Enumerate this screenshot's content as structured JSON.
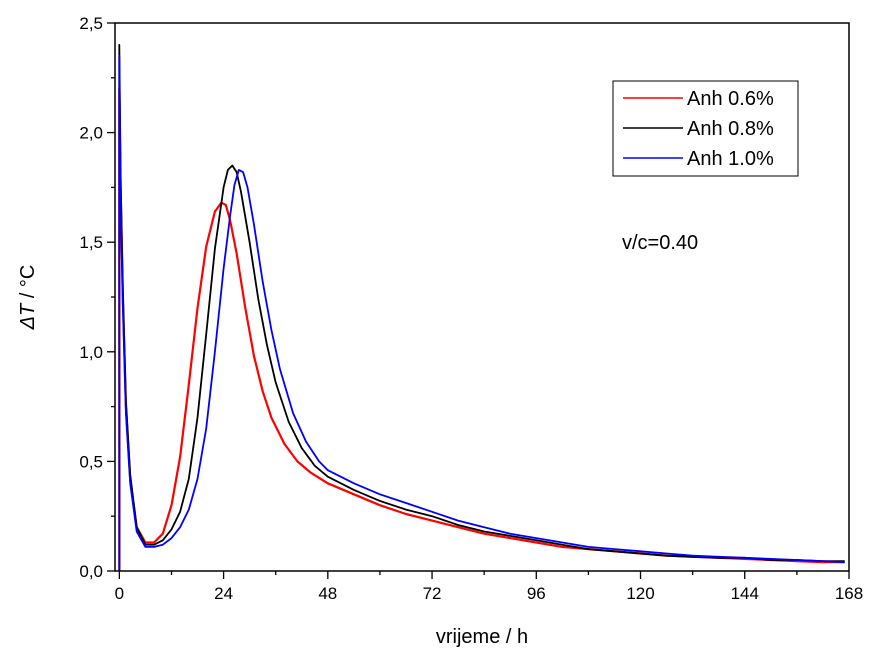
{
  "chart_data": {
    "type": "line",
    "xlabel": "vrijeme / h",
    "ylabel_symbol": "ΔT",
    "ylabel_unit": " / °C",
    "xlim": [
      -1,
      168
    ],
    "ylim": [
      0,
      2.5
    ],
    "xticks": [
      0,
      24,
      48,
      72,
      96,
      120,
      144,
      168
    ],
    "xtick_labels": [
      "0",
      "24",
      "48",
      "72",
      "96",
      "120",
      "144",
      "168"
    ],
    "yticks": [
      0,
      0.5,
      1.0,
      1.5,
      2.0,
      2.5
    ],
    "ytick_labels": [
      "0,0",
      "0,5",
      "1,0",
      "1,5",
      "2,0",
      "2,5"
    ],
    "annotation": "v/c=0.40",
    "legend_position": "top-right",
    "series": [
      {
        "name": "Anh 0.6%",
        "color": "#ff0000",
        "x": [
          0,
          0.3,
          0.8,
          1.5,
          2.5,
          4,
          6,
          8,
          10,
          12,
          14,
          16,
          18,
          20,
          22,
          23.5,
          24.5,
          25.5,
          27,
          29,
          31,
          33,
          35,
          38,
          41,
          44,
          48,
          54,
          60,
          66,
          72,
          78,
          84,
          90,
          96,
          102,
          108,
          114,
          120,
          126,
          132,
          138,
          144,
          150,
          156,
          162,
          167
        ],
        "y": [
          2.2,
          1.75,
          1.25,
          0.75,
          0.42,
          0.2,
          0.13,
          0.13,
          0.17,
          0.3,
          0.52,
          0.85,
          1.2,
          1.48,
          1.64,
          1.68,
          1.67,
          1.6,
          1.45,
          1.2,
          0.98,
          0.82,
          0.7,
          0.58,
          0.5,
          0.45,
          0.4,
          0.35,
          0.3,
          0.26,
          0.23,
          0.2,
          0.17,
          0.15,
          0.13,
          0.11,
          0.1,
          0.09,
          0.08,
          0.07,
          0.065,
          0.06,
          0.055,
          0.05,
          0.045,
          0.04,
          0.04
        ]
      },
      {
        "name": "Anh 0.8%",
        "color": "#000000",
        "x": [
          0,
          0.3,
          0.8,
          1.5,
          2.5,
          4,
          6,
          8,
          10,
          12,
          14,
          16,
          18,
          20,
          22,
          24,
          25,
          26,
          27,
          28,
          30,
          32,
          34,
          36,
          39,
          42,
          45,
          48,
          54,
          60,
          66,
          72,
          78,
          84,
          90,
          96,
          102,
          108,
          114,
          120,
          126,
          132,
          138,
          144,
          150,
          156,
          162,
          167
        ],
        "y": [
          2.4,
          1.8,
          1.3,
          0.78,
          0.44,
          0.2,
          0.12,
          0.12,
          0.14,
          0.19,
          0.27,
          0.42,
          0.7,
          1.08,
          1.47,
          1.75,
          1.83,
          1.85,
          1.82,
          1.73,
          1.5,
          1.24,
          1.03,
          0.86,
          0.68,
          0.56,
          0.48,
          0.43,
          0.37,
          0.32,
          0.28,
          0.25,
          0.21,
          0.18,
          0.16,
          0.14,
          0.12,
          0.1,
          0.09,
          0.08,
          0.07,
          0.065,
          0.06,
          0.06,
          0.05,
          0.05,
          0.045,
          0.045
        ]
      },
      {
        "name": "Anh 1.0%",
        "color": "#0000ff",
        "x": [
          0,
          0.3,
          0.8,
          1.5,
          2.5,
          4,
          6,
          8,
          10,
          12,
          14,
          16,
          18,
          20,
          22,
          24,
          25.5,
          26.5,
          27.5,
          28.5,
          29.5,
          31,
          33,
          35,
          37,
          40,
          43,
          46,
          48,
          54,
          60,
          66,
          72,
          78,
          84,
          90,
          96,
          102,
          108,
          114,
          120,
          126,
          132,
          138,
          144,
          150,
          156,
          162,
          167
        ],
        "y": [
          2.35,
          1.7,
          1.22,
          0.72,
          0.4,
          0.18,
          0.11,
          0.11,
          0.12,
          0.15,
          0.2,
          0.28,
          0.42,
          0.65,
          1.0,
          1.38,
          1.62,
          1.76,
          1.83,
          1.82,
          1.75,
          1.58,
          1.32,
          1.1,
          0.92,
          0.72,
          0.59,
          0.5,
          0.46,
          0.4,
          0.35,
          0.31,
          0.27,
          0.23,
          0.2,
          0.17,
          0.15,
          0.13,
          0.11,
          0.1,
          0.09,
          0.08,
          0.07,
          0.065,
          0.06,
          0.055,
          0.05,
          0.045,
          0.04
        ]
      }
    ]
  }
}
